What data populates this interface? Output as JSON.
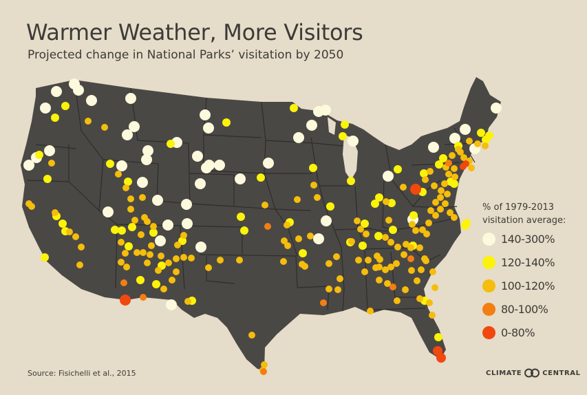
{
  "header": {
    "title": "Warmer Weather, More Visitors",
    "subtitle": "Projected change in National Parks’ visitation by 2050"
  },
  "legend": {
    "heading_line1": "% of 1979-2013",
    "heading_line2": "visitation average:",
    "items": [
      {
        "label": "140-300%",
        "color": "#fdf9dc"
      },
      {
        "label": "120-140%",
        "color": "#fbf30a"
      },
      {
        "label": "100-120%",
        "color": "#f5bd0c"
      },
      {
        "label": "80-100%",
        "color": "#f37e12"
      },
      {
        "label": "0-80%",
        "color": "#f1480f"
      }
    ]
  },
  "source": "Source: Fisichelli et al., 2015",
  "logo": {
    "left": "CLIMATE",
    "right": "CENTRAL",
    "mark": "logo-icon"
  },
  "colors": {
    "background": "#e5dcc9",
    "land": "#4a4845",
    "borders": "#2e2d2b",
    "text": "#3d3b37"
  },
  "map_data": {
    "subject": "contiguous United States",
    "encoding": "point color = visitation category (index into legend.items)",
    "counts_by_category": [
      43,
      58,
      131,
      8,
      6
    ]
  }
}
